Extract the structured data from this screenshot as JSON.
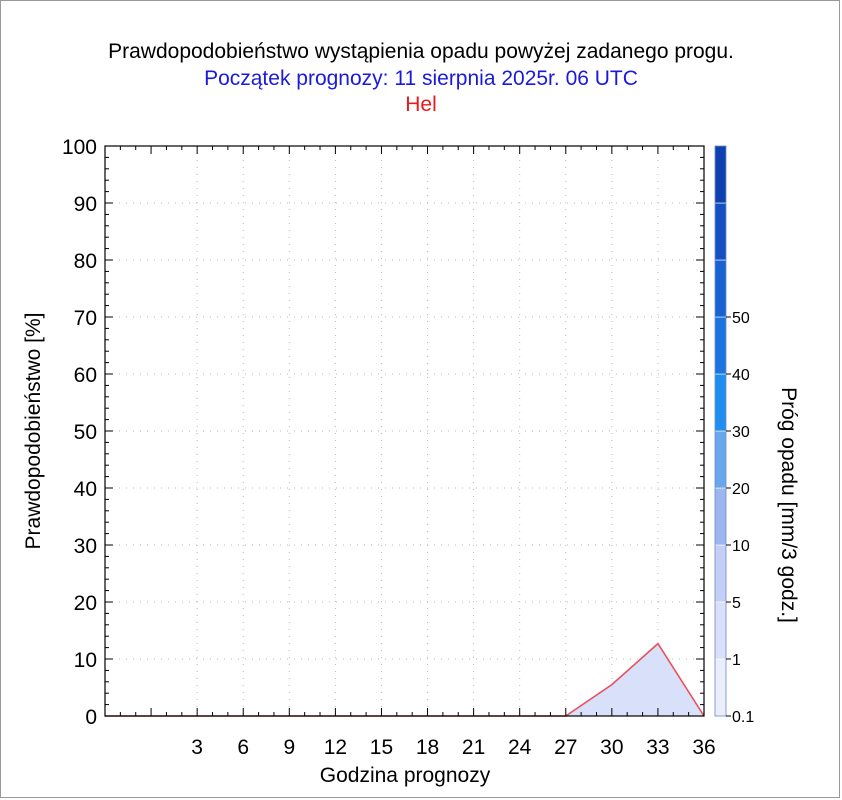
{
  "header": {
    "title": "Prawdopodobieństwo wystąpienia opadu powyżej zadanego progu.",
    "subtitle": "Początek prognozy: 11 sierpnia 2025r. 06 UTC",
    "station": "Hel"
  },
  "colors": {
    "title": "#000000",
    "subtitle": "#1a1adc",
    "station": "#e81a1a",
    "series_line": "#e8505a",
    "series_fill": "#d8e0fa",
    "grid": "#b8b8b8"
  },
  "chart_data": {
    "type": "area",
    "xlabel": "Godzina prognozy",
    "ylabel": "Prawdopodobieństwo [%]",
    "colorbar_label": "Próg opadu [mm/3 godz.]",
    "xlim": [
      -3,
      36
    ],
    "ylim": [
      0,
      100
    ],
    "xticks": [
      3,
      6,
      9,
      12,
      15,
      18,
      21,
      24,
      27,
      30,
      33,
      36
    ],
    "yticks": [
      0,
      10,
      20,
      30,
      40,
      50,
      60,
      70,
      80,
      90,
      100
    ],
    "grid": true,
    "series": [
      {
        "threshold": "0.1",
        "x": [
          -3,
          0,
          3,
          6,
          9,
          12,
          15,
          18,
          21,
          24,
          27,
          30,
          33,
          36
        ],
        "values": [
          0,
          0,
          0,
          0,
          0,
          0,
          0,
          0,
          0,
          0,
          0,
          5.5,
          12.7,
          0
        ]
      }
    ],
    "colorbar": {
      "labels": [
        "0.1",
        "1",
        "5",
        "10",
        "20",
        "30",
        "40",
        "50"
      ],
      "colors": [
        "#eaeefc",
        "#d9e0fa",
        "#c4cff8",
        "#9cb6f2",
        "#6aa6ee",
        "#1e8ff0",
        "#1c74e0",
        "#1862d2",
        "#1450c2",
        "#0e40b0"
      ]
    }
  }
}
